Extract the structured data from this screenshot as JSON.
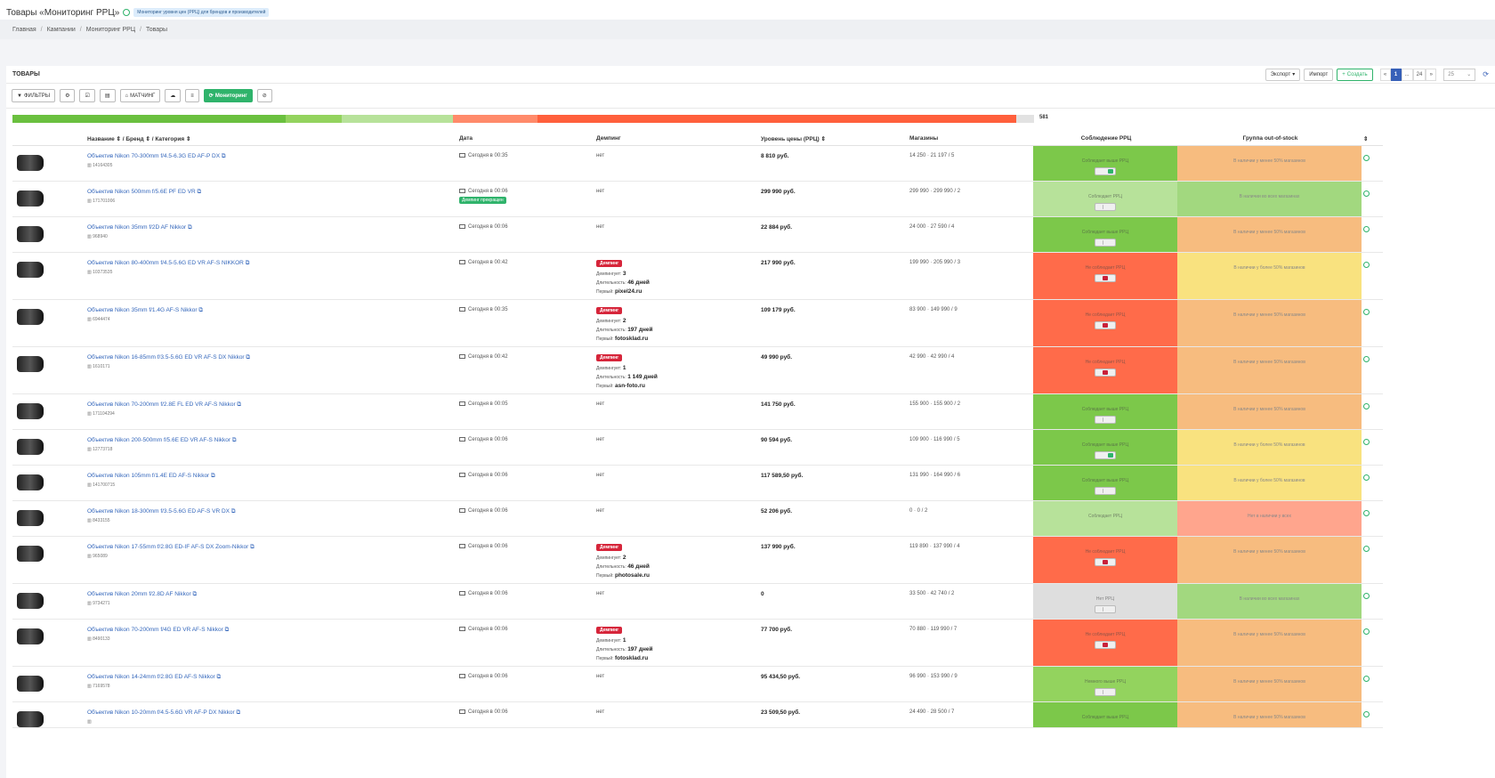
{
  "header": {
    "title": "Товары «Мониторинг РРЦ»",
    "tag": "Мониторинг уровня цен (РРЦ) для брендов и производителей"
  },
  "breadcrumbs": [
    "Главная",
    "Кампании",
    "Мониторинг РРЦ",
    "Товары"
  ],
  "panel": {
    "title": "ТОВАРЫ",
    "export_label": "Экспорт",
    "import_label": "Импорт",
    "create_label": "Создать",
    "pages": [
      "«",
      "1",
      "...",
      "24",
      "»"
    ],
    "page_size": "25"
  },
  "toolbar": {
    "filters_label": "ФИЛЬТРЫ",
    "matching_label": "МАТЧИНГ",
    "monitoring_label": "Мониторинг"
  },
  "progress": {
    "total": "581",
    "segments_pct": [
      26.7,
      5.5,
      10.9,
      8.3,
      46.9,
      1.7
    ],
    "colors": [
      "#6ac03f",
      "#93d35e",
      "#b7e29a",
      "#ff8a6a",
      "#ff5f3c",
      "#e2e2e2"
    ]
  },
  "columns": {
    "name": "Название ⇕ / Бренд ⇕ / Категория ⇕",
    "date": "Дата",
    "dumping": "Демпинг",
    "price": "Уровень цены (РРЦ) ⇕",
    "shops": "Магазины",
    "rpc": "Соблюдение РРЦ",
    "oos": "Группа out-of-stock"
  },
  "rows": [
    {
      "name": "Объектив Nikon 70-300mm f/4.5-6.3G ED AF-P DX",
      "code": "14164305",
      "date": "Сегодня в 00:35",
      "dump": "нет",
      "price": "8 810 руб.",
      "shops": "14 250 · 21 197 / 5",
      "rpc": "Соблюдает выше РРЦ",
      "rpc_color": "#7cc84a",
      "toggle": "g",
      "oos": "В наличии у менее 50% магазинов",
      "oos_color": "#f5a14a"
    },
    {
      "name": "Объектив Nikon 500mm f/5.6E PF ED VR",
      "code": "171701006",
      "date": "Сегодня в 00:06",
      "dump": "нет",
      "first": "Демпинг прекращен",
      "price": "299 990 руб.",
      "shops": "299 990 · 299 990 / 2",
      "rpc": "Соблюдает РРЦ",
      "rpc_color": "#b7e29a",
      "toggle": "n",
      "oos": "В наличии во всех магазинах",
      "oos_color": "#7cc84a"
    },
    {
      "name": "Объектив Nikon 35mm f/2D AF Nikkor",
      "code": "968940",
      "date": "Сегодня в 00:06",
      "dump": "нет",
      "price": "22 884 руб.",
      "shops": "24 000 · 27 590 / 4",
      "rpc": "Соблюдает выше РРЦ",
      "rpc_color": "#7cc84a",
      "toggle": "n",
      "oos": "В наличии у менее 50% магазинов",
      "oos_color": "#f5a14a"
    },
    {
      "name": "Объектив Nikon 80-400mm f/4.5-5.6G ED VR AF-S NIKKOR",
      "code": "10373535",
      "date": "Сегодня в 00:42",
      "dump": "Демпинг",
      "dcount": "3",
      "dlen": "46 дней",
      "dfirst": "pixel24.ru",
      "price": "217 990 руб.",
      "shops": "199 990 · 205 990 / 3",
      "rpc": "Не соблюдает РРЦ",
      "rpc_color": "#ff6b4a",
      "toggle": "r",
      "oos": "В наличии у более 50% магазинов",
      "oos_color": "#f7d64a"
    },
    {
      "name": "Объектив Nikon 35mm f/1.4G AF-S Nikkor",
      "code": "6944474",
      "date": "Сегодня в 00:35",
      "dump": "Демпинг",
      "dcount": "2",
      "dlen": "197 дней",
      "dfirst": "fotosklad.ru",
      "price": "109 179 руб.",
      "shops": "83 900 · 149 990 / 9",
      "rpc": "Не соблюдает РРЦ",
      "rpc_color": "#ff6b4a",
      "toggle": "r",
      "oos": "В наличии у менее 50% магазинов",
      "oos_color": "#f5a14a"
    },
    {
      "name": "Объектив Nikon 16-85mm f/3.5-5.6G ED VR AF-S DX Nikkor",
      "code": "1610171",
      "date": "Сегодня в 00:42",
      "dump": "Демпинг",
      "dcount": "1",
      "dlen": "1 149 дней",
      "dfirst": "asn-foto.ru",
      "price": "49 990 руб.",
      "shops": "42 990 · 42 990 / 4",
      "rpc": "Не соблюдает РРЦ",
      "rpc_color": "#ff6b4a",
      "toggle": "r",
      "oos": "В наличии у менее 50% магазинов",
      "oos_color": "#f5a14a"
    },
    {
      "name": "Объектив Nikon 70-200mm f/2.8E FL ED VR AF-S Nikkor",
      "code": "171104294",
      "date": "Сегодня в 00:05",
      "dump": "нет",
      "price": "141 750 руб.",
      "shops": "155 900 · 155 900 / 2",
      "rpc": "Соблюдает выше РРЦ",
      "rpc_color": "#7cc84a",
      "toggle": "n",
      "oos": "В наличии у менее 50% магазинов",
      "oos_color": "#f5a14a"
    },
    {
      "name": "Объектив Nikon 200-500mm f/5.6E ED VR AF-S Nikkor",
      "code": "12773718",
      "date": "Сегодня в 00:06",
      "dump": "нет",
      "price": "90 594 руб.",
      "shops": "109 900 · 116 990 / 5",
      "rpc": "Соблюдает выше РРЦ",
      "rpc_color": "#7cc84a",
      "toggle": "g",
      "oos": "В наличии у более 50% магазинов",
      "oos_color": "#f7d64a"
    },
    {
      "name": "Объектив Nikon 105mm f/1.4E ED AF-S Nikkor",
      "code": "141700715",
      "date": "Сегодня в 00:06",
      "dump": "нет",
      "price": "117 589,50 руб.",
      "shops": "131 990 · 164 990 / 6",
      "rpc": "Соблюдает выше РРЦ",
      "rpc_color": "#7cc84a",
      "toggle": "n",
      "oos": "В наличии у более 50% магазинов",
      "oos_color": "#f7d64a"
    },
    {
      "name": "Объектив Nikon 18-300mm f/3.5-5.6G ED AF-S VR DX",
      "code": "8433155",
      "date": "Сегодня в 00:06",
      "dump": "нет",
      "price": "52 206 руб.",
      "shops": "0 · 0 / 2",
      "rpc": "Соблюдает РРЦ",
      "rpc_color": "#b7e29a",
      "toggle": "",
      "oos": "Нет в наличии у всех",
      "oos_color": "#ff7f5e"
    },
    {
      "name": "Объектив Nikon 17-55mm f/2.8G ED-IF AF-S DX Zoom-Nikkor",
      "code": "965089",
      "date": "Сегодня в 00:06",
      "dump": "Демпинг",
      "dcount": "2",
      "dlen": "46 дней",
      "dfirst": "photosale.ru",
      "price": "137 990 руб.",
      "shops": "119 890 · 137 990 / 4",
      "rpc": "Не соблюдает РРЦ",
      "rpc_color": "#ff6b4a",
      "toggle": "r",
      "oos": "В наличии у менее 50% магазинов",
      "oos_color": "#f5a14a"
    },
    {
      "name": "Объектив Nikon 20mm f/2.8D AF Nikkor",
      "code": "9734271",
      "date": "Сегодня в 00:06",
      "dump": "нет",
      "price": "0",
      "shops": "33 500 · 42 740 / 2",
      "rpc": "Нет РРЦ",
      "rpc_color": "#dedede",
      "toggle": "n",
      "oos": "В наличии во всех магазинах",
      "oos_color": "#7cc84a"
    },
    {
      "name": "Объектив Nikon 70-200mm f/4G ED VR AF-S Nikkor",
      "code": "8490133",
      "date": "Сегодня в 00:06",
      "dump": "Демпинг",
      "dcount": "1",
      "dlen": "197 дней",
      "dfirst": "fotosklad.ru",
      "price": "77 700 руб.",
      "shops": "70 880 · 119 990 / 7",
      "rpc": "Не соблюдает РРЦ",
      "rpc_color": "#ff6b4a",
      "toggle": "r",
      "oos": "В наличии у менее 50% магазинов",
      "oos_color": "#f5a14a"
    },
    {
      "name": "Объектив Nikon 14-24mm f/2.8G ED AF-S Nikkor",
      "code": "7169578",
      "date": "Сегодня в 00:06",
      "dump": "нет",
      "price": "95 434,50 руб.",
      "shops": "96 990 · 153 990 / 9",
      "rpc": "Немного выше РРЦ",
      "rpc_color": "#93d35e",
      "toggle": "n",
      "oos": "В наличии у менее 50% магазинов",
      "oos_color": "#f5a14a"
    },
    {
      "name": "Объектив Nikon 10-20mm f/4.5-5.6G VR AF-P DX Nikkor",
      "code": "",
      "date": "Сегодня в 00:06",
      "dump": "нет",
      "price": "23 509,50 руб.",
      "shops": "24 490 · 28 500 / 7",
      "rpc": "Соблюдает выше РРЦ",
      "rpc_color": "#7cc84a",
      "toggle": "",
      "oos": "В наличии у менее 50% магазинов",
      "oos_color": "#f5a14a"
    }
  ],
  "labels": {
    "dcount": "Демпингует:",
    "dlen": "Длительность:",
    "dfirst": "Первый:"
  }
}
